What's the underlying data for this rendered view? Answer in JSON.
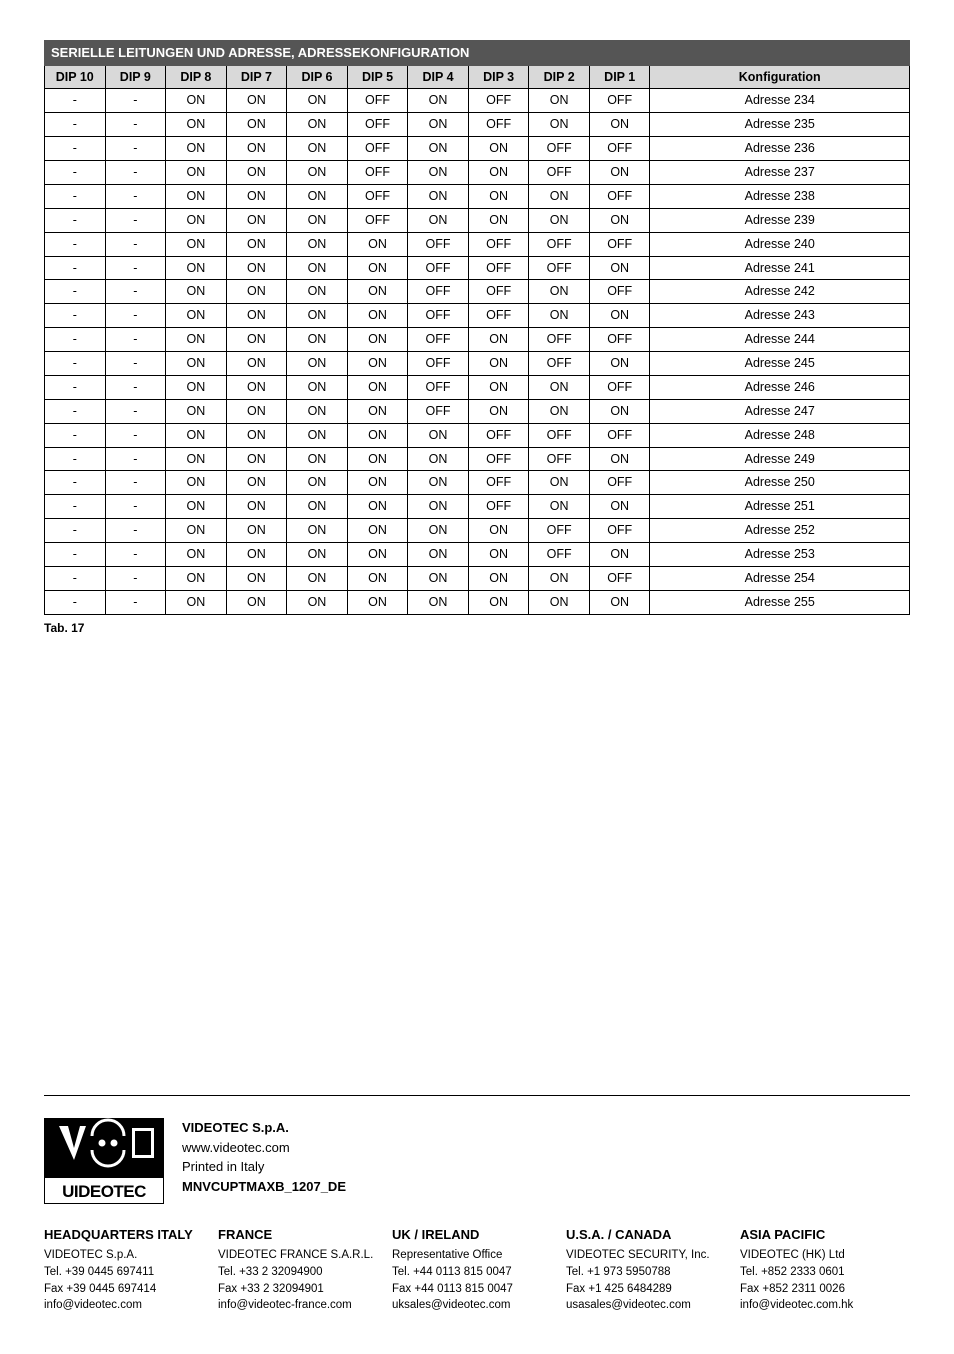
{
  "table": {
    "title": "SERIELLE LEITUNGEN UND ADRESSE, ADRESSEKONFIGURATION",
    "columns": [
      "DIP 10",
      "DIP 9",
      "DIP 8",
      "DIP 7",
      "DIP 6",
      "DIP 5",
      "DIP 4",
      "DIP 3",
      "DIP 2",
      "DIP 1",
      "Konfiguration"
    ],
    "rows": [
      [
        "-",
        "-",
        "ON",
        "ON",
        "ON",
        "OFF",
        "ON",
        "OFF",
        "ON",
        "OFF",
        "Adresse 234"
      ],
      [
        "-",
        "-",
        "ON",
        "ON",
        "ON",
        "OFF",
        "ON",
        "OFF",
        "ON",
        "ON",
        "Adresse 235"
      ],
      [
        "-",
        "-",
        "ON",
        "ON",
        "ON",
        "OFF",
        "ON",
        "ON",
        "OFF",
        "OFF",
        "Adresse 236"
      ],
      [
        "-",
        "-",
        "ON",
        "ON",
        "ON",
        "OFF",
        "ON",
        "ON",
        "OFF",
        "ON",
        "Adresse 237"
      ],
      [
        "-",
        "-",
        "ON",
        "ON",
        "ON",
        "OFF",
        "ON",
        "ON",
        "ON",
        "OFF",
        "Adresse 238"
      ],
      [
        "-",
        "-",
        "ON",
        "ON",
        "ON",
        "OFF",
        "ON",
        "ON",
        "ON",
        "ON",
        "Adresse 239"
      ],
      [
        "-",
        "-",
        "ON",
        "ON",
        "ON",
        "ON",
        "OFF",
        "OFF",
        "OFF",
        "OFF",
        "Adresse 240"
      ],
      [
        "-",
        "-",
        "ON",
        "ON",
        "ON",
        "ON",
        "OFF",
        "OFF",
        "OFF",
        "ON",
        "Adresse 241"
      ],
      [
        "-",
        "-",
        "ON",
        "ON",
        "ON",
        "ON",
        "OFF",
        "OFF",
        "ON",
        "OFF",
        "Adresse 242"
      ],
      [
        "-",
        "-",
        "ON",
        "ON",
        "ON",
        "ON",
        "OFF",
        "OFF",
        "ON",
        "ON",
        "Adresse 243"
      ],
      [
        "-",
        "-",
        "ON",
        "ON",
        "ON",
        "ON",
        "OFF",
        "ON",
        "OFF",
        "OFF",
        "Adresse 244"
      ],
      [
        "-",
        "-",
        "ON",
        "ON",
        "ON",
        "ON",
        "OFF",
        "ON",
        "OFF",
        "ON",
        "Adresse 245"
      ],
      [
        "-",
        "-",
        "ON",
        "ON",
        "ON",
        "ON",
        "OFF",
        "ON",
        "ON",
        "OFF",
        "Adresse 246"
      ],
      [
        "-",
        "-",
        "ON",
        "ON",
        "ON",
        "ON",
        "OFF",
        "ON",
        "ON",
        "ON",
        "Adresse 247"
      ],
      [
        "-",
        "-",
        "ON",
        "ON",
        "ON",
        "ON",
        "ON",
        "OFF",
        "OFF",
        "OFF",
        "Adresse 248"
      ],
      [
        "-",
        "-",
        "ON",
        "ON",
        "ON",
        "ON",
        "ON",
        "OFF",
        "OFF",
        "ON",
        "Adresse 249"
      ],
      [
        "-",
        "-",
        "ON",
        "ON",
        "ON",
        "ON",
        "ON",
        "OFF",
        "ON",
        "OFF",
        "Adresse 250"
      ],
      [
        "-",
        "-",
        "ON",
        "ON",
        "ON",
        "ON",
        "ON",
        "OFF",
        "ON",
        "ON",
        "Adresse 251"
      ],
      [
        "-",
        "-",
        "ON",
        "ON",
        "ON",
        "ON",
        "ON",
        "ON",
        "OFF",
        "OFF",
        "Adresse 252"
      ],
      [
        "-",
        "-",
        "ON",
        "ON",
        "ON",
        "ON",
        "ON",
        "ON",
        "OFF",
        "ON",
        "Adresse 253"
      ],
      [
        "-",
        "-",
        "ON",
        "ON",
        "ON",
        "ON",
        "ON",
        "ON",
        "ON",
        "OFF",
        "Adresse 254"
      ],
      [
        "-",
        "-",
        "ON",
        "ON",
        "ON",
        "ON",
        "ON",
        "ON",
        "ON",
        "ON",
        "Adresse 255"
      ]
    ],
    "caption": "Tab. 17",
    "col_widths_percent": [
      7,
      7,
      7,
      7,
      7,
      7,
      7,
      7,
      7,
      7,
      30
    ],
    "header_bg": "#555555",
    "subheader_bg": "#d9d9d9"
  },
  "company": {
    "name": "VIDEOTEC S.p.A.",
    "url": "www.videotec.com",
    "printed": "Printed in Italy",
    "doc_code": "MNVCUPTMAXB_1207_DE"
  },
  "offices": [
    {
      "title": "HEADQUARTERS ITALY",
      "lines": [
        "VIDEOTEC S.p.A.",
        "Tel. +39 0445 697411",
        "Fax +39 0445 697414",
        "info@videotec.com"
      ]
    },
    {
      "title": "FRANCE",
      "lines": [
        "VIDEOTEC FRANCE S.A.R.L.",
        "Tel. +33 2 32094900",
        "Fax +33 2 32094901",
        "info@videotec-france.com"
      ]
    },
    {
      "title": "UK / IRELAND",
      "lines": [
        "Representative Office",
        "Tel. +44 0113 815 0047",
        "Fax +44 0113 815 0047",
        "uksales@videotec.com"
      ]
    },
    {
      "title": "U.S.A. / CANADA",
      "lines": [
        "VIDEOTEC SECURITY, Inc.",
        "Tel. +1 973 5950788",
        "Fax +1 425 6484289",
        "usasales@videotec.com"
      ]
    },
    {
      "title": "ASIA PACIFIC",
      "lines": [
        "VIDEOTEC (HK) Ltd",
        "Tel. +852 2333 0601",
        "Fax +852 2311 0026",
        "info@videotec.com.hk"
      ]
    }
  ]
}
